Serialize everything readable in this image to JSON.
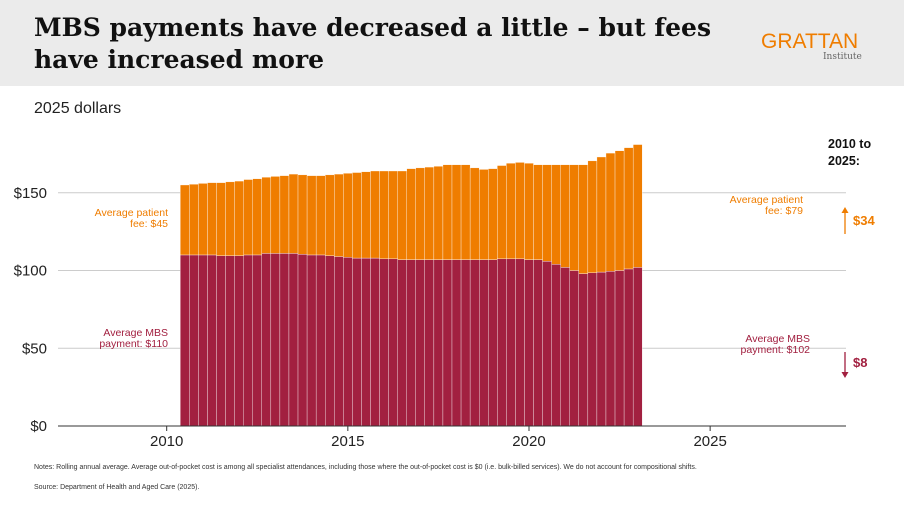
{
  "header": {
    "title": "MBS payments have decreased a little – but fees have increased more",
    "logo_text": "GRATTAN",
    "logo_sub": "Institute"
  },
  "unit_label": "2025 dollars",
  "notes": "Notes: Rolling annual average. Average out-of-pocket cost is among all specialist attendances, including those where the out-of-pocket cost is $0 (i.e. bulk-billed services). We do not account for compositional shifts.",
  "source": "Source: Department of Health and Aged Care (2025).",
  "colors": {
    "fee": "#ef7d00",
    "mbs": "#a22040",
    "grid": "#cccccc",
    "axis": "#333333"
  },
  "chart_data": {
    "type": "bar",
    "stacked": true,
    "x_start": 2010.375,
    "x_step": 0.25,
    "xlim": [
      2007,
      2028.75
    ],
    "ylim": [
      0,
      200
    ],
    "x_ticks": [
      2010,
      2015,
      2020,
      2025
    ],
    "x_tick_labels": [
      "2010",
      "2015",
      "2020",
      "2025"
    ],
    "y_ticks": [
      0,
      50,
      100,
      150
    ],
    "y_tick_labels": [
      "$0",
      "$50",
      "$100",
      "$150"
    ],
    "grid": true,
    "series": [
      {
        "key": "mbs",
        "color": "#a22040",
        "values": [
          110,
          110,
          110,
          110,
          109.5,
          109.5,
          109.5,
          110,
          110,
          111,
          111,
          111,
          111,
          110.5,
          110,
          110,
          109.5,
          109,
          108.5,
          108,
          108,
          108,
          107.5,
          107.5,
          107,
          107,
          107,
          107,
          107,
          107,
          107,
          107,
          107,
          107,
          107,
          107.5,
          107.5,
          107.5,
          107,
          107,
          106,
          104,
          102,
          100,
          98,
          98.5,
          99,
          99.5,
          100,
          101,
          102
        ]
      },
      {
        "key": "fee",
        "color": "#ef7d00",
        "values": [
          45,
          45.5,
          46,
          46.5,
          47,
          47.5,
          48,
          48.5,
          49,
          49,
          49.5,
          50,
          51,
          51,
          51,
          51,
          52,
          53,
          54,
          55,
          55.5,
          56,
          56.5,
          56.5,
          57,
          58.5,
          59,
          59.5,
          60,
          61,
          61,
          61,
          59,
          58,
          58.5,
          60,
          61.5,
          62,
          62,
          61,
          62,
          64,
          66,
          68,
          70,
          72,
          74,
          76,
          77,
          78,
          79
        ]
      }
    ],
    "annotations": [
      {
        "text": "Average patient fee: $45",
        "series": "fee"
      },
      {
        "text": "Average patient fee: $79",
        "series": "fee"
      },
      {
        "text": "Average MBS payment: $110",
        "series": "mbs"
      },
      {
        "text": "Average MBS payment: $102",
        "series": "mbs"
      }
    ],
    "change_box": {
      "title": "2010 to 2025:",
      "fee_change": "$34",
      "fee_direction": "up",
      "mbs_change": "$8",
      "mbs_direction": "down"
    }
  }
}
